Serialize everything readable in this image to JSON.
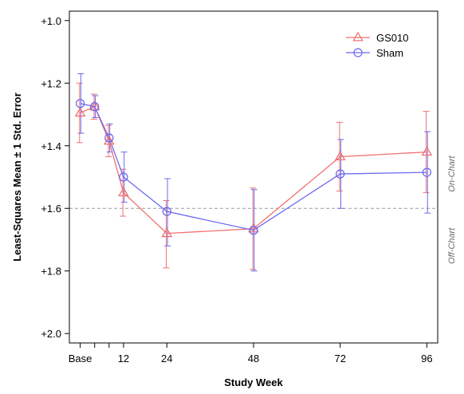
{
  "chart_data": {
    "type": "line",
    "xlabel": "Study Week",
    "ylabel": "Least-Squares Mean ± 1 Std. Error",
    "x_ticks": [
      {
        "value": 0,
        "label": "Base"
      },
      {
        "value": 4,
        "label": ""
      },
      {
        "value": 8,
        "label": ""
      },
      {
        "value": 12,
        "label": "12"
      },
      {
        "value": 24,
        "label": "24"
      },
      {
        "value": 48,
        "label": "48"
      },
      {
        "value": 72,
        "label": "72"
      },
      {
        "value": 96,
        "label": "96"
      }
    ],
    "y_ticks": [
      {
        "value": 1.0,
        "label": "+1.0"
      },
      {
        "value": 1.2,
        "label": "+1.2"
      },
      {
        "value": 1.4,
        "label": "+1.4"
      },
      {
        "value": 1.6,
        "label": "+1.6"
      },
      {
        "value": 1.8,
        "label": "+1.8"
      },
      {
        "value": 2.0,
        "label": "+2.0"
      }
    ],
    "xlim": [
      -3,
      99
    ],
    "ylim": [
      0.97,
      2.03
    ],
    "y_inverted": true,
    "threshold": 1.6,
    "zones": {
      "above": "On-Chart",
      "below": "Off-Chart"
    },
    "legend_position": "top-right",
    "series": [
      {
        "name": "GS010",
        "color": "#f07070",
        "marker": "triangle",
        "x": [
          0,
          4,
          8,
          12,
          24,
          48,
          72,
          96
        ],
        "y": [
          1.295,
          1.275,
          1.385,
          1.55,
          1.68,
          1.665,
          1.435,
          1.42
        ],
        "se_low": [
          1.2,
          1.235,
          1.335,
          1.475,
          1.575,
          1.535,
          1.325,
          1.29
        ],
        "se_high": [
          1.39,
          1.315,
          1.435,
          1.625,
          1.79,
          1.795,
          1.545,
          1.55
        ]
      },
      {
        "name": "Sham",
        "color": "#6a6af0",
        "marker": "circle",
        "x": [
          0,
          4,
          8,
          12,
          24,
          48,
          72,
          96
        ],
        "y": [
          1.265,
          1.275,
          1.375,
          1.5,
          1.61,
          1.67,
          1.49,
          1.485
        ],
        "se_low": [
          1.17,
          1.24,
          1.33,
          1.42,
          1.505,
          1.54,
          1.38,
          1.355
        ],
        "se_high": [
          1.36,
          1.31,
          1.42,
          1.58,
          1.72,
          1.8,
          1.6,
          1.615
        ]
      }
    ]
  }
}
